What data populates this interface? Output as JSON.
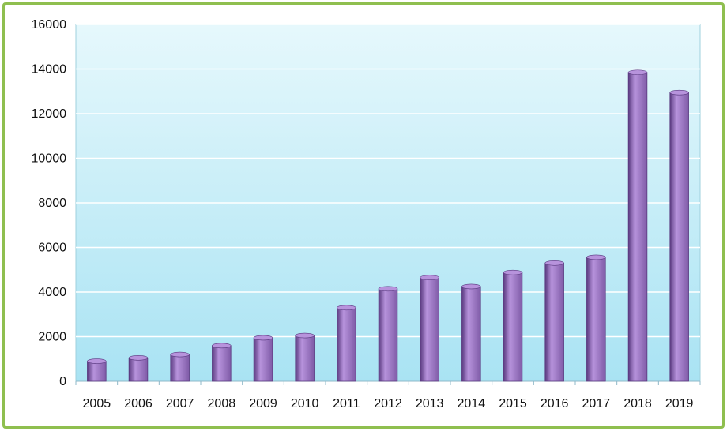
{
  "chart_data": {
    "type": "bar",
    "categories": [
      "2005",
      "2006",
      "2007",
      "2008",
      "2009",
      "2010",
      "2011",
      "2012",
      "2013",
      "2014",
      "2015",
      "2016",
      "2017",
      "2018",
      "2019"
    ],
    "values": [
      900,
      1050,
      1200,
      1600,
      1950,
      2050,
      3300,
      4150,
      4650,
      4250,
      4880,
      5300,
      5560,
      13850,
      12950
    ],
    "ylim": [
      0,
      16000
    ],
    "y_ticks": [
      "0",
      "2000",
      "4000",
      "6000",
      "8000",
      "10000",
      "12000",
      "14000",
      "16000"
    ],
    "y_tick_values": [
      0,
      2000,
      4000,
      6000,
      8000,
      10000,
      12000,
      14000,
      16000
    ],
    "title": "",
    "xlabel": "",
    "ylabel": "",
    "grid": "horizontal",
    "legend": "none",
    "colors": {
      "bar": "#7f5ba7",
      "bar_light": "#b793dc",
      "bar_dark": "#5a3a80",
      "plot_top": "#e6f8fc",
      "plot_bottom": "#a9e3f3",
      "gridline": "#ffffff",
      "border": "#8fbf4f"
    }
  }
}
